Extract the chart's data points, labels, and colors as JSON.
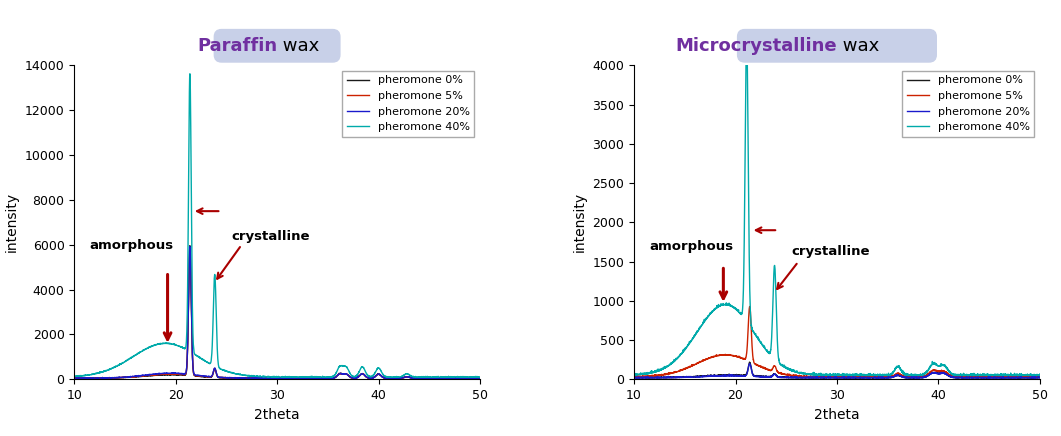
{
  "paraffin_title_purple": "Paraffin",
  "paraffin_title_black": " wax",
  "micro_title_purple": "Microcrystalline",
  "micro_title_black": " wax",
  "title_bg_color": "#c8d0e8",
  "xlabel": "2theta",
  "ylabel": "intensity",
  "xlim": [
    10,
    50
  ],
  "legend_labels": [
    "pheromone 0%",
    "pheromone 5%",
    "pheromone 20%",
    "pheromone 40%"
  ],
  "line_colors": [
    "#1a1a1a",
    "#cc2200",
    "#1a1acc",
    "#00aaaa"
  ],
  "paraffin_ylim": [
    0,
    14000
  ],
  "micro_ylim": [
    0,
    4000
  ],
  "paraffin_yticks": [
    0,
    2000,
    4000,
    6000,
    8000,
    10000,
    12000,
    14000
  ],
  "micro_yticks": [
    0,
    500,
    1000,
    1500,
    2000,
    2500,
    3000,
    3500,
    4000
  ],
  "annotation_color": "#aa0000",
  "amorphous_label": "amorphous",
  "crystalline_label": "crystalline"
}
